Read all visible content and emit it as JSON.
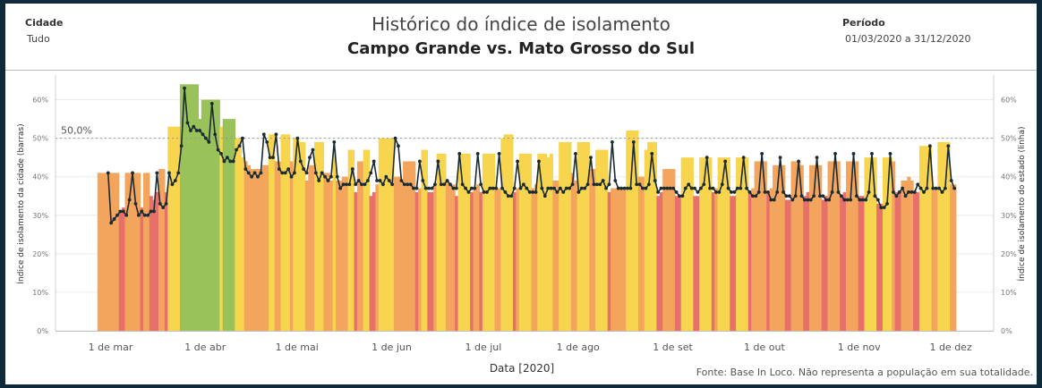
{
  "header": {
    "city_label": "Cidade",
    "city_value": "Tudo",
    "period_label": "Período",
    "period_value": "01/03/2020 a 31/12/2020"
  },
  "title": "Histórico do índice de isolamento",
  "subtitle": "Campo Grande vs. Mato Grosso do Sul",
  "footer": "Fonte: Base In Loco. Não representa a população em sua totalidade.",
  "chart_data": {
    "type": "bar",
    "x_start": "2020-03-01",
    "xlabel": "Data [2020]",
    "ylabel_left": "Índice de isolamento da cidade (barras)",
    "ylabel_right": "Índice de isolamento do estado (linha)",
    "ylim": [
      0,
      0.65
    ],
    "yticks": [
      "0%",
      "10%",
      "20%",
      "30%",
      "40%",
      "50%",
      "60%"
    ],
    "xticks": [
      "1 de mar",
      "1 de abr",
      "1 de mai",
      "1 de jun",
      "1 de jul",
      "1 de ago",
      "1 de set",
      "1 de out",
      "1 de nov",
      "1 de dez"
    ],
    "reference_line": {
      "value": 0.5,
      "label": "50,0%"
    },
    "bar_colors": {
      "red": "#e8706a",
      "orange": "#f3a55e",
      "yellow": "#f7d54e",
      "green": "#9ac25a"
    },
    "line_color": "#1a2b33",
    "series": [
      {
        "name": "Índice de isolamento da cidade (barras)",
        "values": [
          0.41,
          0.41,
          0.41,
          0.41,
          0.41,
          0.41,
          0.41,
          0.31,
          0.32,
          0.41,
          0.41,
          0.41,
          0.41,
          0.41,
          0.32,
          0.41,
          0.41,
          0.35,
          0.34,
          0.36,
          0.42,
          0.42,
          0.36,
          0.53,
          0.53,
          0.53,
          0.53,
          0.64,
          0.64,
          0.64,
          0.64,
          0.64,
          0.64,
          0.55,
          0.6,
          0.6,
          0.6,
          0.6,
          0.6,
          0.6,
          0.53,
          0.55,
          0.55,
          0.55,
          0.55,
          0.5,
          0.5,
          0.45,
          0.44,
          0.43,
          0.42,
          0.42,
          0.42,
          0.42,
          0.43,
          0.43,
          0.51,
          0.51,
          0.44,
          0.44,
          0.51,
          0.51,
          0.51,
          0.44,
          0.5,
          0.5,
          0.49,
          0.49,
          0.39,
          0.43,
          0.43,
          0.49,
          0.49,
          0.49,
          0.41,
          0.41,
          0.39,
          0.47,
          0.39,
          0.39,
          0.4,
          0.4,
          0.47,
          0.47,
          0.36,
          0.44,
          0.44,
          0.47,
          0.47,
          0.35,
          0.36,
          0.38,
          0.5,
          0.5,
          0.5,
          0.5,
          0.5,
          0.4,
          0.4,
          0.39,
          0.44,
          0.44,
          0.44,
          0.44,
          0.36,
          0.37,
          0.47,
          0.47,
          0.36,
          0.36,
          0.38,
          0.46,
          0.46,
          0.46,
          0.39,
          0.38,
          0.38,
          0.35,
          0.46,
          0.46,
          0.46,
          0.46,
          0.36,
          0.37,
          0.38,
          0.36,
          0.46,
          0.46,
          0.46,
          0.46,
          0.37,
          0.37,
          0.5,
          0.51,
          0.51,
          0.51,
          0.36,
          0.37,
          0.46,
          0.46,
          0.46,
          0.46,
          0.37,
          0.38,
          0.46,
          0.46,
          0.46,
          0.45,
          0.46,
          0.39,
          0.39,
          0.49,
          0.49,
          0.49,
          0.49,
          0.41,
          0.39,
          0.49,
          0.49,
          0.49,
          0.49,
          0.42,
          0.42,
          0.47,
          0.47,
          0.47,
          0.47,
          0.36,
          0.37,
          0.37,
          0.37,
          0.37,
          0.37,
          0.52,
          0.52,
          0.52,
          0.52,
          0.4,
          0.4,
          0.47,
          0.49,
          0.49,
          0.49,
          0.35,
          0.36,
          0.42,
          0.42,
          0.42,
          0.42,
          0.35,
          0.35,
          0.45,
          0.45,
          0.45,
          0.45,
          0.35,
          0.35,
          0.45,
          0.45,
          0.45,
          0.45,
          0.36,
          0.37,
          0.45,
          0.45,
          0.45,
          0.45,
          0.35,
          0.35,
          0.45,
          0.45,
          0.45,
          0.45,
          0.36,
          0.37,
          0.44,
          0.44,
          0.44,
          0.44,
          0.36,
          0.37,
          0.43,
          0.43,
          0.43,
          0.43,
          0.34,
          0.34,
          0.44,
          0.44,
          0.44,
          0.43,
          0.35,
          0.36,
          0.43,
          0.43,
          0.43,
          0.43,
          0.34,
          0.35,
          0.44,
          0.44,
          0.44,
          0.44,
          0.35,
          0.36,
          0.44,
          0.44,
          0.44,
          0.44,
          0.35,
          0.35,
          0.45,
          0.45,
          0.45,
          0.45,
          0.33,
          0.33,
          0.45,
          0.45,
          0.45,
          0.44,
          0.36,
          0.36,
          0.39,
          0.39,
          0.4,
          0.39,
          0.36,
          0.36,
          0.48,
          0.48,
          0.48,
          0.48,
          0.37,
          0.37,
          0.49,
          0.49,
          0.49,
          0.49,
          0.38,
          0.38
        ]
      },
      {
        "name": "Índice de isolamento do estado (linha)",
        "values": [
          0.41,
          0.28,
          0.29,
          0.3,
          0.31,
          0.31,
          0.3,
          0.34,
          0.41,
          0.33,
          0.3,
          0.31,
          0.3,
          0.3,
          0.31,
          0.31,
          0.41,
          0.33,
          0.32,
          0.33,
          0.41,
          0.38,
          0.39,
          0.41,
          0.48,
          0.63,
          0.54,
          0.52,
          0.53,
          0.52,
          0.52,
          0.51,
          0.5,
          0.49,
          0.59,
          0.51,
          0.47,
          0.46,
          0.44,
          0.45,
          0.44,
          0.44,
          0.47,
          0.48,
          0.5,
          0.42,
          0.41,
          0.4,
          0.41,
          0.4,
          0.41,
          0.51,
          0.49,
          0.45,
          0.45,
          0.51,
          0.42,
          0.41,
          0.41,
          0.42,
          0.4,
          0.41,
          0.5,
          0.44,
          0.42,
          0.41,
          0.45,
          0.47,
          0.41,
          0.39,
          0.41,
          0.4,
          0.39,
          0.4,
          0.49,
          0.4,
          0.37,
          0.38,
          0.38,
          0.38,
          0.42,
          0.38,
          0.39,
          0.38,
          0.38,
          0.39,
          0.41,
          0.44,
          0.39,
          0.39,
          0.38,
          0.4,
          0.39,
          0.38,
          0.5,
          0.48,
          0.39,
          0.38,
          0.38,
          0.38,
          0.37,
          0.37,
          0.44,
          0.39,
          0.37,
          0.37,
          0.37,
          0.38,
          0.44,
          0.38,
          0.38,
          0.39,
          0.38,
          0.37,
          0.37,
          0.46,
          0.38,
          0.37,
          0.36,
          0.37,
          0.37,
          0.46,
          0.38,
          0.36,
          0.36,
          0.37,
          0.37,
          0.37,
          0.46,
          0.37,
          0.36,
          0.35,
          0.35,
          0.37,
          0.44,
          0.37,
          0.38,
          0.37,
          0.36,
          0.36,
          0.36,
          0.44,
          0.37,
          0.35,
          0.37,
          0.37,
          0.37,
          0.36,
          0.37,
          0.36,
          0.37,
          0.37,
          0.38,
          0.46,
          0.36,
          0.37,
          0.37,
          0.38,
          0.45,
          0.38,
          0.38,
          0.38,
          0.39,
          0.37,
          0.38,
          0.49,
          0.39,
          0.37,
          0.37,
          0.37,
          0.37,
          0.37,
          0.49,
          0.38,
          0.38,
          0.37,
          0.37,
          0.38,
          0.46,
          0.39,
          0.36,
          0.37,
          0.37,
          0.37,
          0.37,
          0.37,
          0.36,
          0.35,
          0.35,
          0.37,
          0.38,
          0.37,
          0.37,
          0.36,
          0.37,
          0.38,
          0.45,
          0.37,
          0.37,
          0.36,
          0.36,
          0.38,
          0.44,
          0.37,
          0.36,
          0.36,
          0.37,
          0.37,
          0.45,
          0.37,
          0.36,
          0.35,
          0.35,
          0.36,
          0.46,
          0.36,
          0.36,
          0.34,
          0.34,
          0.36,
          0.45,
          0.36,
          0.35,
          0.35,
          0.34,
          0.35,
          0.44,
          0.35,
          0.34,
          0.34,
          0.34,
          0.35,
          0.45,
          0.35,
          0.35,
          0.34,
          0.34,
          0.36,
          0.46,
          0.36,
          0.35,
          0.34,
          0.34,
          0.34,
          0.46,
          0.35,
          0.34,
          0.34,
          0.34,
          0.36,
          0.46,
          0.35,
          0.34,
          0.32,
          0.32,
          0.33,
          0.46,
          0.36,
          0.35,
          0.36,
          0.37,
          0.35,
          0.36,
          0.36,
          0.36,
          0.38,
          0.37,
          0.36,
          0.37,
          0.48,
          0.37,
          0.37,
          0.37,
          0.36,
          0.37,
          0.48,
          0.39,
          0.37
        ]
      }
    ]
  }
}
